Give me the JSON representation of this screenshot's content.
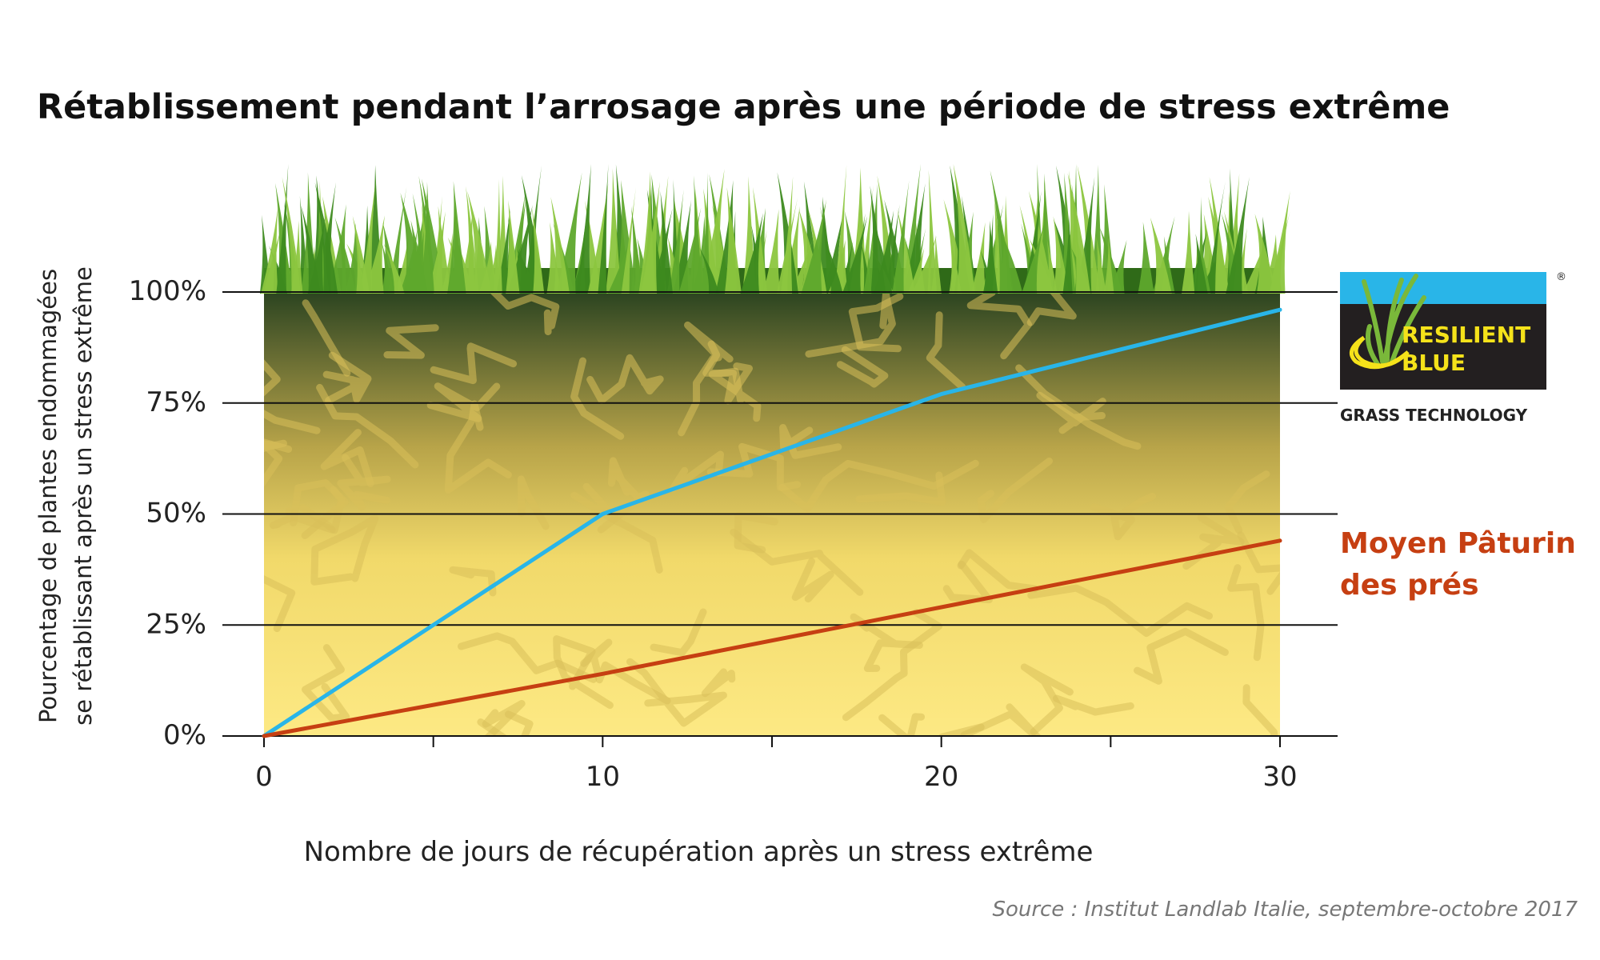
{
  "chart_data": {
    "type": "line",
    "title": "Rétablissement pendant l’arrosage après une période de stress extrême",
    "xlabel": "Nombre de jours de récupération après un stress extrême",
    "ylabel_line1": "Pourcentage de plantes endommagées",
    "ylabel_line2": "se rétablissant après un stress extrême",
    "xlim": [
      0,
      30
    ],
    "ylim": [
      0,
      100
    ],
    "x_ticks": [
      0,
      10,
      20,
      30
    ],
    "x_ticks_minor": [
      5,
      15,
      25
    ],
    "y_ticks": [
      0,
      25,
      50,
      75,
      100
    ],
    "y_tick_labels": [
      "0%",
      "25%",
      "50%",
      "75%",
      "100%"
    ],
    "grid": true,
    "series": [
      {
        "label_key": "resilient",
        "color": "#29b5e8",
        "x": [
          0,
          10,
          20,
          30
        ],
        "y": [
          0,
          50,
          77,
          96
        ]
      },
      {
        "name": "Moyen Pâturin des prés",
        "color": "#c63f12",
        "x": [
          0,
          10,
          20,
          30
        ],
        "y": [
          0,
          14,
          29,
          44
        ]
      }
    ],
    "source": "Source : Institut Landlab Italie, septembre-octobre 2017"
  },
  "logo": {
    "line1": "RESILIENT",
    "line2": "BLUE",
    "tagline": "GRASS TECHNOLOGY",
    "mark": "®",
    "colors": {
      "top": "#29b5e8",
      "body": "#231f20",
      "text": "#f5e21a",
      "swoosh": "#f5e21a",
      "grass": "#7ab83a"
    }
  },
  "legend": {
    "paturin_line1": "Moyen Pâturin",
    "paturin_line2": "des prés",
    "paturin_color": "#c63f12"
  },
  "colors": {
    "soil_top": "#2b4420",
    "soil_mid": "#c9b24c",
    "soil_bottom": "#fde984",
    "grass_dark": "#3b8a1e",
    "grass_light": "#8cc63f",
    "gridline": "#111111"
  }
}
